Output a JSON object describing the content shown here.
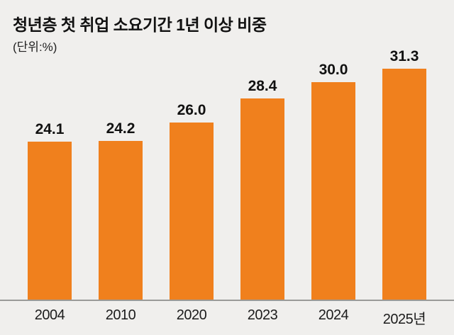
{
  "title": "청년층 첫 취업 소요기간 1년 이상 비중",
  "unit_label": "(단위:%)",
  "colors": {
    "bar": "#F0801D",
    "background": "#F0EFED",
    "text": "#111111",
    "axis": "#9A9A98"
  },
  "chart_data": {
    "type": "bar",
    "title": "청년층 첫 취업 소요기간 1년 이상 비중",
    "xlabel": "",
    "ylabel": "(단위:%)",
    "categories": [
      "2004",
      "2010",
      "2020",
      "2023",
      "2024",
      "2025년"
    ],
    "values": [
      24.1,
      24.2,
      26.0,
      28.4,
      30.0,
      31.3
    ],
    "value_labels": [
      "24.1",
      "24.2",
      "26.0",
      "28.4",
      "30.0",
      "31.3"
    ],
    "legend": "none",
    "grid": false,
    "value_axis_truncated": true
  }
}
